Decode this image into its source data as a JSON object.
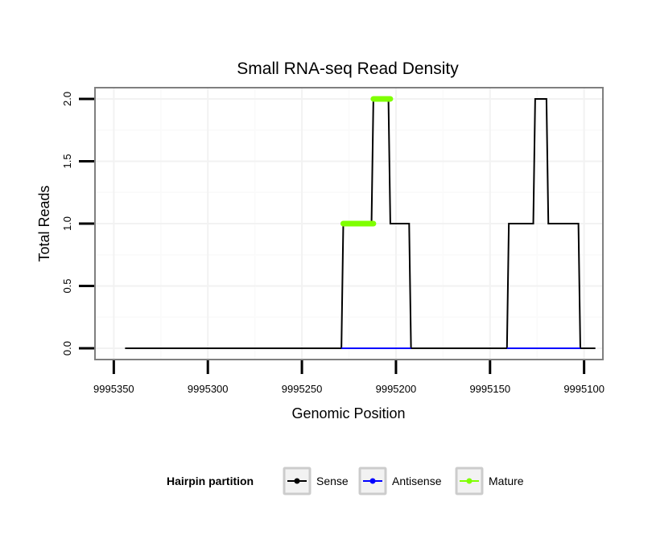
{
  "chart_data": {
    "type": "line",
    "title": "Small RNA-seq Read Density",
    "xlabel": "Genomic Position",
    "ylabel": "Total Reads",
    "xlim": [
      9995360,
      9995090
    ],
    "ylim": [
      -0.09,
      2.09
    ],
    "x_reversed": true,
    "x_ticks": [
      9995350,
      9995300,
      9995250,
      9995200,
      9995150,
      9995100
    ],
    "y_ticks": [
      0.0,
      0.5,
      1.0,
      1.5,
      2.0
    ],
    "grid": true,
    "legend_position": "bottom",
    "legend_title": "Hairpin partition",
    "series": [
      {
        "name": "Sense",
        "color": "#000000",
        "x": [
          9995344,
          9995229,
          9995228,
          9995213,
          9995212,
          9995204,
          9995203,
          9995193,
          9995192,
          9995141,
          9995140,
          9995127,
          9995126,
          9995120,
          9995119,
          9995103,
          9995102,
          9995094
        ],
        "y": [
          0,
          0,
          1,
          1,
          2,
          2,
          1,
          1,
          0,
          0,
          1,
          1,
          2,
          2,
          1,
          1,
          0,
          0
        ]
      },
      {
        "name": "Antisense",
        "color": "#0000ff",
        "x": [
          9995229,
          9995192,
          9995141,
          9995102
        ],
        "y": [
          0,
          0,
          0,
          0
        ]
      },
      {
        "name": "Mature",
        "color": "#7fff00",
        "segments": [
          {
            "x": [
              9995228,
              9995212
            ],
            "y": [
              1,
              1
            ]
          },
          {
            "x": [
              9995212,
              9995203
            ],
            "y": [
              2,
              2
            ]
          }
        ]
      }
    ]
  }
}
